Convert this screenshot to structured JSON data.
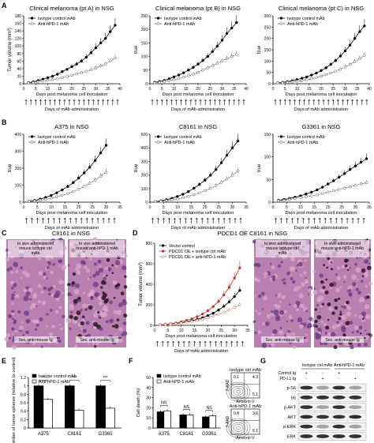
{
  "panels": [
    {
      "letter": "A",
      "title": "",
      "xlabel": "",
      "ylabel": "Tumor volume (mm³)",
      "type": "line"
    },
    {
      "letter": "B",
      "title": "",
      "xlabel": "",
      "ylabel": "Tumor volume (mm³)",
      "type": "line"
    },
    {
      "letter": "C",
      "title": "C8161 in NSG",
      "type": "image"
    },
    {
      "letter": "D",
      "title": "PDCD1 OE C8161 in NSG",
      "type": "line"
    },
    {
      "letter": "E",
      "type": "bar"
    },
    {
      "letter": "F",
      "type": "bar"
    },
    {
      "letter": "G",
      "type": "blot"
    }
  ],
  "labels": {
    "days_post": "Days post melanoma cell inoculation",
    "days_mab": "Days of mAb administration",
    "ctrl_panel_left": "In vivo administered mouse isotype ctrl mAb",
    "ctrl_panel_right": "In vivo administered mouse anti-hPD-1 mAb",
    "sec_antibody": "Sec. anti-mouse Ig",
    "flow_iso": "Isotype ctrl mAb",
    "flow_anti": "Anti-hPD-1 mAb",
    "flow_y": "7-AAD",
    "flow_x": "Annexin-V",
    "flow_q": [
      "0.1",
      "4.3",
      "5.1",
      "0.4",
      "3.6",
      "6.1"
    ],
    "blot_header": [
      "Isotype ctrl mAb",
      "Anti-hPD-1 mAb"
    ],
    "blot_control": "Control Ig",
    "blot_pdl1": "PD-L1 Ig",
    "blot_rows": [
      "p-S6",
      "S6",
      "p-AKT",
      "AKT",
      "p-ERK",
      "ERK"
    ],
    "blot_signs": [
      "+",
      "-",
      "+",
      "-"
    ],
    "blot_signs2": [
      "-",
      "+",
      "-",
      "+"
    ]
  },
  "colors": {
    "isotype": "#000000",
    "anti": "#ffffff",
    "vector": "#000000",
    "oe_iso": "#c0392b",
    "oe_anti": "#e07a5f"
  },
  "chart_data": [
    {
      "panel": "A1",
      "type": "line",
      "title": "Clinical melanoma (pt A) in NSG",
      "ylabel": "Tumor volume (mm³)",
      "xlabel": "Days post melanoma cell inoculation",
      "ylim": [
        0,
        180
      ],
      "yticks": [
        0,
        20,
        40,
        60,
        80,
        100,
        120,
        140,
        160,
        180
      ],
      "xlim": [
        0,
        40
      ],
      "xticks": [
        0,
        5,
        10,
        15,
        20,
        25,
        30,
        35,
        40
      ],
      "series": [
        {
          "name": "Isotype control mAb",
          "x": [
            2,
            4,
            6,
            8,
            10,
            12,
            14,
            16,
            18,
            20,
            22,
            24,
            26,
            28,
            30,
            32,
            34,
            36,
            38
          ],
          "y": [
            3,
            5,
            8,
            12,
            16,
            20,
            25,
            32,
            38,
            45,
            52,
            60,
            70,
            82,
            95,
            108,
            120,
            138,
            155
          ]
        },
        {
          "name": "Anti-hPD-1 mAb",
          "x": [
            2,
            4,
            6,
            8,
            10,
            12,
            14,
            16,
            18,
            20,
            22,
            24,
            26,
            28,
            30,
            32,
            34,
            36,
            38
          ],
          "y": [
            2,
            3,
            5,
            7,
            9,
            11,
            13,
            16,
            19,
            22,
            26,
            29,
            33,
            37,
            42,
            47,
            52,
            60,
            68
          ]
        }
      ]
    },
    {
      "panel": "A2",
      "type": "line",
      "title": "Clinical melanoma (pt B) in NSG",
      "ylim": [
        0,
        250
      ],
      "yticks": [
        0,
        50,
        100,
        150,
        200,
        250
      ],
      "xlim": [
        0,
        40
      ],
      "xticks": [
        0,
        5,
        10,
        15,
        20,
        25,
        30,
        35,
        40
      ],
      "xlabel": "Days post melanoma cell inoculation",
      "series": [
        {
          "name": "Isotype control mAb",
          "x": [
            2,
            4,
            6,
            8,
            10,
            12,
            14,
            16,
            18,
            20,
            22,
            24,
            26,
            28,
            30,
            32,
            34,
            36
          ],
          "y": [
            5,
            8,
            12,
            18,
            25,
            32,
            40,
            50,
            60,
            72,
            85,
            100,
            118,
            138,
            160,
            185,
            205,
            225
          ]
        },
        {
          "name": "Anti-hPD-1 mAb",
          "x": [
            2,
            4,
            6,
            8,
            10,
            12,
            14,
            16,
            18,
            20,
            22,
            24,
            26,
            28,
            30,
            32,
            34,
            36
          ],
          "y": [
            3,
            5,
            8,
            11,
            15,
            19,
            24,
            29,
            35,
            42,
            50,
            58,
            66,
            75,
            84,
            92,
            100,
            108
          ]
        }
      ]
    },
    {
      "panel": "A3",
      "type": "line",
      "title": "Clinical melanoma (pt C) in NSG",
      "ylim": [
        0,
        300
      ],
      "yticks": [
        0,
        50,
        100,
        150,
        200,
        250,
        300
      ],
      "xlim": [
        0,
        40
      ],
      "xticks": [
        0,
        5,
        10,
        15,
        20,
        25,
        30,
        35,
        40
      ],
      "xlabel": "Days post melanoma cell inoculation",
      "series": [
        {
          "name": "Isotype control mAb",
          "x": [
            2,
            4,
            6,
            8,
            10,
            12,
            14,
            16,
            18,
            20,
            22,
            24,
            26,
            28,
            30,
            32,
            34,
            36,
            38
          ],
          "y": [
            4,
            6,
            9,
            13,
            18,
            24,
            30,
            38,
            47,
            58,
            70,
            85,
            102,
            122,
            145,
            170,
            200,
            230,
            255
          ]
        },
        {
          "name": "Anti-hPD-1 mAb",
          "x": [
            2,
            4,
            6,
            8,
            10,
            12,
            14,
            16,
            18,
            20,
            22,
            24,
            26,
            28,
            30,
            32,
            34,
            36,
            38
          ],
          "y": [
            3,
            4,
            6,
            8,
            11,
            14,
            18,
            22,
            27,
            33,
            40,
            47,
            55,
            64,
            74,
            85,
            97,
            110,
            125
          ]
        }
      ]
    },
    {
      "panel": "B1",
      "type": "line",
      "title": "A375 in NSG",
      "ylim": [
        0,
        400
      ],
      "yticks": [
        0,
        100,
        200,
        300,
        400
      ],
      "xlim": [
        0,
        35
      ],
      "xticks": [
        0,
        5,
        10,
        15,
        20,
        25,
        30,
        35
      ],
      "xlabel": "Days post melanoma cell inoculation",
      "series": [
        {
          "name": "Isotype control mAb",
          "x": [
            2,
            4,
            6,
            8,
            10,
            12,
            14,
            16,
            18,
            20,
            22,
            24,
            26,
            28,
            30
          ],
          "y": [
            5,
            10,
            18,
            28,
            40,
            55,
            72,
            92,
            115,
            142,
            172,
            205,
            245,
            290,
            335
          ]
        },
        {
          "name": "Anti-hPD-1 mAb",
          "x": [
            2,
            4,
            6,
            8,
            10,
            12,
            14,
            16,
            18,
            20,
            22,
            24,
            26,
            28,
            30
          ],
          "y": [
            4,
            7,
            12,
            17,
            24,
            31,
            40,
            50,
            62,
            76,
            92,
            110,
            130,
            152,
            175
          ]
        }
      ]
    },
    {
      "panel": "B2",
      "type": "line",
      "title": "C8161 in NSG",
      "ylim": [
        0,
        500
      ],
      "yticks": [
        0,
        100,
        200,
        300,
        400,
        500
      ],
      "xlim": [
        0,
        35
      ],
      "xticks": [
        0,
        5,
        10,
        15,
        20,
        25,
        30,
        35
      ],
      "xlabel": "Days post melanoma cell inoculation",
      "series": [
        {
          "name": "Isotype control mAb",
          "x": [
            2,
            4,
            6,
            8,
            10,
            12,
            14,
            16,
            18,
            20,
            22,
            24,
            26,
            28,
            30,
            32
          ],
          "y": [
            5,
            10,
            18,
            28,
            42,
            58,
            78,
            102,
            130,
            162,
            198,
            240,
            290,
            345,
            400,
            450
          ]
        },
        {
          "name": "Anti-hPD-1 mAb",
          "x": [
            2,
            4,
            6,
            8,
            10,
            12,
            14,
            16,
            18,
            20,
            22,
            24,
            26,
            28,
            30,
            32
          ],
          "y": [
            4,
            7,
            12,
            17,
            24,
            32,
            42,
            54,
            68,
            84,
            102,
            122,
            145,
            170,
            198,
            228
          ]
        }
      ]
    },
    {
      "panel": "B3",
      "type": "line",
      "title": "G3361 in NSG",
      "ylim": [
        0,
        150
      ],
      "yticks": [
        0,
        50,
        100,
        150
      ],
      "xlim": [
        0,
        35
      ],
      "xticks": [
        0,
        5,
        10,
        15,
        20,
        25,
        30,
        35
      ],
      "xlabel": "Days post melanoma cell inoculation",
      "series": [
        {
          "name": "Isotype control mAb",
          "x": [
            2,
            4,
            6,
            8,
            10,
            12,
            14,
            16,
            18,
            20,
            22,
            24,
            26,
            28,
            30,
            32,
            34
          ],
          "y": [
            4,
            6,
            8,
            11,
            14,
            18,
            22,
            27,
            33,
            40,
            47,
            55,
            63,
            72,
            80,
            88,
            96
          ]
        },
        {
          "name": "Anti-hPD-1 mAb",
          "x": [
            2,
            4,
            6,
            8,
            10,
            12,
            14,
            16,
            18,
            20,
            22,
            24,
            26,
            28,
            30,
            32,
            34
          ],
          "y": [
            3,
            4,
            6,
            8,
            10,
            12,
            14,
            16,
            19,
            22,
            25,
            28,
            31,
            34,
            37,
            40,
            43
          ]
        }
      ]
    },
    {
      "panel": "D",
      "type": "line",
      "ylabel": "Tumor volume (mm³)",
      "ylim": [
        0,
        800
      ],
      "yticks": [
        0,
        200,
        400,
        600,
        800
      ],
      "xlim": [
        0,
        35
      ],
      "xticks": [
        0,
        5,
        10,
        15,
        20,
        25,
        30,
        35
      ],
      "xlabel": "Days post melanoma cell inoculation",
      "series": [
        {
          "name": "Vector control",
          "x": [
            2,
            4,
            6,
            8,
            10,
            12,
            14,
            16,
            18,
            20,
            22,
            24,
            26,
            28,
            30,
            32
          ],
          "y": [
            5,
            8,
            12,
            18,
            25,
            34,
            45,
            58,
            74,
            94,
            118,
            148,
            185,
            228,
            280,
            340
          ]
        },
        {
          "name": "PDCD1 OE + isotype ctrl mAb",
          "x": [
            2,
            4,
            6,
            8,
            10,
            12,
            14,
            16,
            18,
            20,
            22,
            24,
            26,
            28,
            30,
            32
          ],
          "y": [
            6,
            10,
            16,
            24,
            35,
            48,
            64,
            85,
            110,
            142,
            182,
            232,
            295,
            370,
            460,
            560
          ]
        },
        {
          "name": "PDCD1 OE + anti-hPD-1 mAb",
          "x": [
            2,
            4,
            6,
            8,
            10,
            12,
            14,
            16,
            18,
            20,
            22,
            24,
            26,
            28,
            30,
            32
          ],
          "y": [
            4,
            7,
            11,
            16,
            22,
            29,
            38,
            48,
            60,
            74,
            90,
            108,
            128,
            150,
            175,
            200
          ]
        }
      ]
    },
    {
      "panel": "E",
      "type": "bar",
      "ylabel": "Number of tumor spheres (relative to control)",
      "ylim": [
        0,
        1.2
      ],
      "yticks": [
        0,
        0.2,
        0.4,
        0.6,
        0.8,
        1.0,
        1.2
      ],
      "categories": [
        "A375",
        "C8161",
        "G3361"
      ],
      "series": [
        {
          "name": "Isotype control mAb",
          "values": [
            1.0,
            1.0,
            1.0
          ]
        },
        {
          "name": "Anti-hPD-1 mAb",
          "values": [
            0.68,
            0.42,
            0.47
          ]
        }
      ],
      "significance": [
        "**",
        "***",
        "***"
      ]
    },
    {
      "panel": "F",
      "type": "bar",
      "ylabel": "Cell death (%)",
      "ylim": [
        0,
        50
      ],
      "yticks": [
        0,
        10,
        20,
        30,
        40,
        50
      ],
      "categories": [
        "A375",
        "C8161",
        "G3361"
      ],
      "series": [
        {
          "name": "Isotype control mAb",
          "values": [
            16,
            13,
            11
          ]
        },
        {
          "name": "Anti-hPD-1 mAb",
          "values": [
            17,
            13,
            12
          ]
        }
      ],
      "significance": [
        "NS",
        "NS",
        "NS"
      ]
    }
  ]
}
